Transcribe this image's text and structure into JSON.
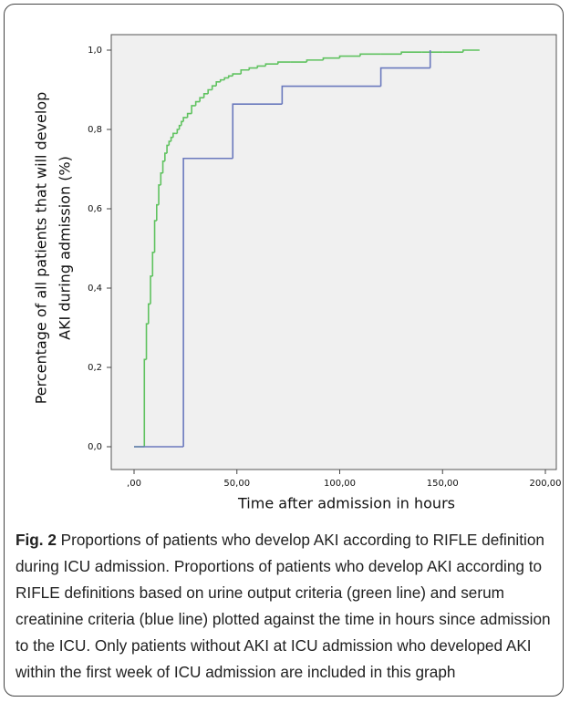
{
  "chart_data": {
    "type": "line",
    "step": "post",
    "xlabel": "Time after admission in hours",
    "ylabel": [
      "Percentage of all patients that will develop",
      "AKI during admission (%)"
    ],
    "xlim": [
      0,
      200
    ],
    "ylim": [
      0,
      1
    ],
    "xticks": [
      {
        "value": 0,
        "label": ",00"
      },
      {
        "value": 50,
        "label": "50,00"
      },
      {
        "value": 100,
        "label": "100,00"
      },
      {
        "value": 150,
        "label": "150,00"
      },
      {
        "value": 200,
        "label": "200,00"
      }
    ],
    "yticks": [
      {
        "value": 0,
        "label": "0,0"
      },
      {
        "value": 0.2,
        "label": "0,2"
      },
      {
        "value": 0.4,
        "label": "0,4"
      },
      {
        "value": 0.6,
        "label": "0,6"
      },
      {
        "value": 0.8,
        "label": "0,8"
      },
      {
        "value": 1,
        "label": "1,0"
      }
    ],
    "series": [
      {
        "color": "#5fc25f",
        "x": [
          0,
          5,
          6,
          7,
          8,
          9,
          10,
          11,
          12,
          13,
          14,
          15,
          16,
          17,
          18,
          19,
          20,
          21,
          22,
          23,
          24,
          26,
          28,
          30,
          32,
          34,
          36,
          38,
          40,
          42,
          44,
          46,
          48,
          52,
          56,
          60,
          64,
          70,
          76,
          84,
          92,
          100,
          110,
          120,
          130,
          140,
          150,
          160,
          168
        ],
        "values": [
          0,
          0.22,
          0.31,
          0.36,
          0.43,
          0.49,
          0.57,
          0.61,
          0.66,
          0.69,
          0.72,
          0.74,
          0.76,
          0.77,
          0.78,
          0.79,
          0.79,
          0.8,
          0.81,
          0.82,
          0.83,
          0.84,
          0.86,
          0.87,
          0.88,
          0.89,
          0.9,
          0.91,
          0.92,
          0.925,
          0.93,
          0.935,
          0.94,
          0.95,
          0.955,
          0.96,
          0.965,
          0.97,
          0.97,
          0.975,
          0.98,
          0.985,
          0.99,
          0.99,
          0.995,
          0.995,
          0.995,
          1,
          1
        ]
      },
      {
        "color": "#6a79bd",
        "x": [
          0,
          24,
          48,
          72,
          120,
          144
        ],
        "values": [
          0,
          0.727,
          0.864,
          0.909,
          0.955,
          1
        ]
      }
    ]
  },
  "caption": {
    "label": "Fig. 2",
    "text": "Proportions of patients who develop AKI according to RIFLE definition during ICU admission. Proportions of patients who develop AKI according to RIFLE definitions based on urine output criteria (green line) and serum creatinine criteria (blue line) plotted against the time in hours since admission to the ICU. Only patients without AKI at ICU admission who developed AKI within the first week of ICU admission are included in this graph"
  }
}
